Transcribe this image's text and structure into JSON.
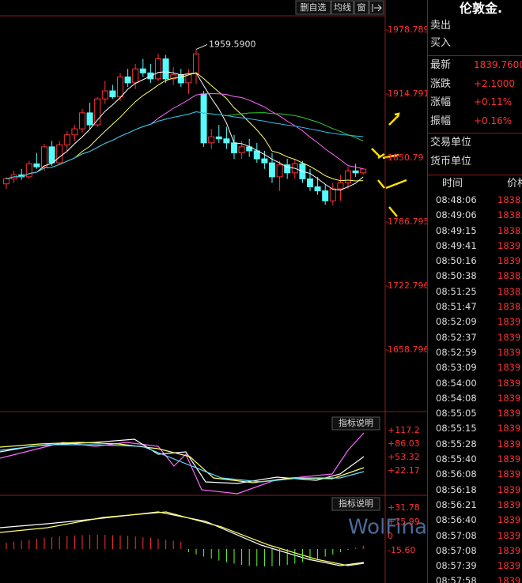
{
  "toolbar": {
    "buttons": [
      "删自选",
      "均线",
      "窗"
    ]
  },
  "main_chart": {
    "high_label": "1959.5900",
    "yticks": [
      1978.789,
      1914.791,
      1850.79,
      1786.795,
      1722.796,
      1658.796
    ],
    "ylim": [
      1597.2,
      1993.1
    ],
    "candles": [
      [
        1825,
        1832,
        1820,
        1830
      ],
      [
        1830,
        1838,
        1826,
        1834
      ],
      [
        1834,
        1840,
        1829,
        1832
      ],
      [
        1832,
        1848,
        1830,
        1845
      ],
      [
        1845,
        1856,
        1840,
        1842
      ],
      [
        1842,
        1865,
        1838,
        1862
      ],
      [
        1862,
        1868,
        1843,
        1846
      ],
      [
        1846,
        1868,
        1844,
        1864
      ],
      [
        1864,
        1878,
        1858,
        1874
      ],
      [
        1874,
        1884,
        1868,
        1880
      ],
      [
        1880,
        1900,
        1876,
        1896
      ],
      [
        1896,
        1906,
        1880,
        1884
      ],
      [
        1884,
        1912,
        1882,
        1910
      ],
      [
        1910,
        1928,
        1905,
        1918
      ],
      [
        1918,
        1924,
        1910,
        1912
      ],
      [
        1912,
        1936,
        1908,
        1932
      ],
      [
        1932,
        1940,
        1922,
        1926
      ],
      [
        1926,
        1945,
        1920,
        1940
      ],
      [
        1940,
        1950,
        1932,
        1936
      ],
      [
        1936,
        1945,
        1926,
        1930
      ],
      [
        1930,
        1955,
        1928,
        1950
      ],
      [
        1950,
        1954,
        1926,
        1930
      ],
      [
        1930,
        1942,
        1924,
        1934
      ],
      [
        1934,
        1940,
        1922,
        1926
      ],
      [
        1926,
        1940,
        1915,
        1935
      ],
      [
        1935,
        1959.59,
        1925,
        1955
      ],
      [
        1915,
        1918,
        1862,
        1866
      ],
      [
        1866,
        1880,
        1860,
        1872
      ],
      [
        1872,
        1884,
        1866,
        1870
      ],
      [
        1870,
        1882,
        1860,
        1866
      ],
      [
        1866,
        1874,
        1850,
        1856
      ],
      [
        1856,
        1868,
        1850,
        1862
      ],
      [
        1862,
        1870,
        1852,
        1858
      ],
      [
        1858,
        1866,
        1846,
        1850
      ],
      [
        1850,
        1858,
        1840,
        1846
      ],
      [
        1846,
        1856,
        1826,
        1832
      ],
      [
        1832,
        1848,
        1818,
        1844
      ],
      [
        1844,
        1850,
        1830,
        1836
      ],
      [
        1836,
        1850,
        1830,
        1845
      ],
      [
        1845,
        1848,
        1826,
        1830
      ],
      [
        1830,
        1840,
        1818,
        1822
      ],
      [
        1822,
        1832,
        1814,
        1818
      ],
      [
        1818,
        1824,
        1804,
        1808
      ],
      [
        1808,
        1826,
        1804,
        1820
      ],
      [
        1820,
        1834,
        1808,
        1826
      ],
      [
        1826,
        1842,
        1820,
        1838
      ],
      [
        1838,
        1845,
        1832,
        1836
      ],
      [
        1836,
        1841,
        1834,
        1839.76
      ]
    ]
  },
  "indicator1": {
    "button": "指标说明",
    "ticks": [
      "+117.2",
      "+86.03",
      "+53.32",
      "+22.17"
    ]
  },
  "indicator2": {
    "button": "指标说明",
    "ticks": [
      "+31.78",
      "+15.99",
      "0",
      "-15.60"
    ]
  },
  "watermark": "WolFinance",
  "quote": {
    "title": "伦敦金.",
    "rows": [
      {
        "label": "卖出",
        "value": ""
      },
      {
        "label": "买入",
        "value": ""
      }
    ],
    "stats": [
      {
        "label": "最新",
        "value": "1839.7600"
      },
      {
        "label": "涨跌",
        "value": "+2.1000"
      },
      {
        "label": "涨幅",
        "value": "+0.11%"
      },
      {
        "label": "振幅",
        "value": "+0.16%"
      }
    ],
    "units": [
      "交易单位",
      "货币单位"
    ],
    "columns": [
      "时间",
      "价格"
    ],
    "ticks": [
      [
        "08:48:06",
        "1838."
      ],
      [
        "08:49:06",
        "1838."
      ],
      [
        "08:49:15",
        "1838."
      ],
      [
        "08:49:41",
        "1839"
      ],
      [
        "08:50:16",
        "1839"
      ],
      [
        "08:50:38",
        "1838."
      ],
      [
        "08:51:25",
        "1838."
      ],
      [
        "08:51:47",
        "1838."
      ],
      [
        "08:52:09",
        "1839"
      ],
      [
        "08:52:37",
        "1839"
      ],
      [
        "08:52:59",
        "1839"
      ],
      [
        "08:53:09",
        "1839"
      ],
      [
        "08:54:00",
        "1839"
      ],
      [
        "08:54:08",
        "1839"
      ],
      [
        "08:55:05",
        "1839"
      ],
      [
        "08:55:15",
        "1839"
      ],
      [
        "08:55:28",
        "1839"
      ],
      [
        "08:55:40",
        "1839"
      ],
      [
        "08:56:08",
        "1839"
      ],
      [
        "08:56:18",
        "1839"
      ],
      [
        "08:56:21",
        "1839"
      ],
      [
        "08:56:40",
        "1839"
      ],
      [
        "08:57:08",
        "1839"
      ],
      [
        "08:57:08",
        "1839"
      ],
      [
        "08:57:39",
        "1839"
      ],
      [
        "08:57:58",
        "1839"
      ]
    ]
  }
}
